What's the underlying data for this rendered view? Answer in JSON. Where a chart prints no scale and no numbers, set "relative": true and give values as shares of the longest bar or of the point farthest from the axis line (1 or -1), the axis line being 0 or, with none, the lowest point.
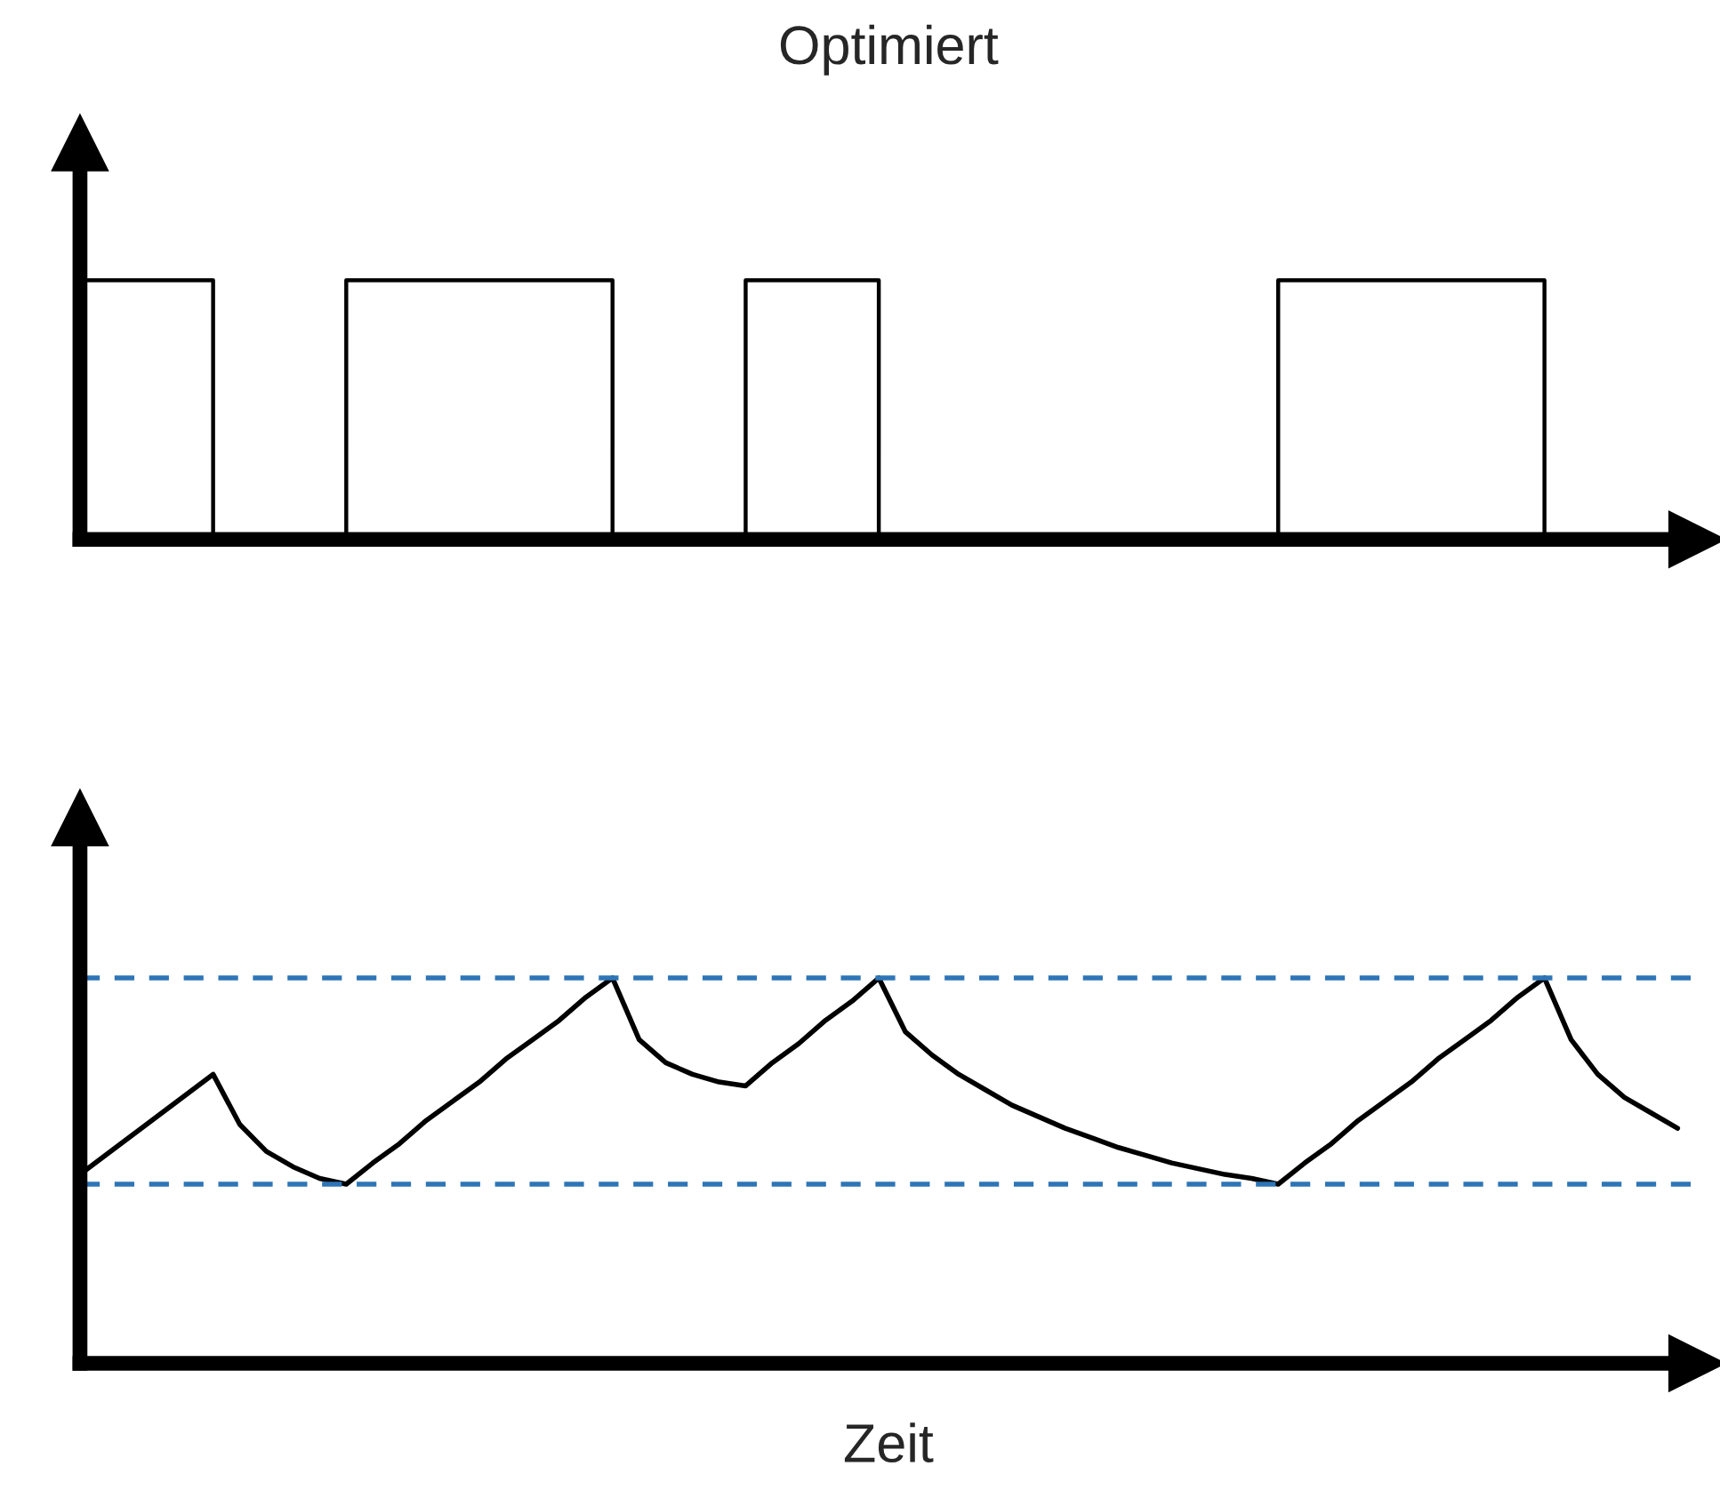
{
  "chart_data": [
    {
      "type": "step",
      "title": "Optimiert",
      "relative": true,
      "tick_labels": false,
      "categories": [
        null,
        null,
        null,
        null,
        null,
        null,
        null,
        null,
        null,
        null,
        null,
        null,
        null
      ],
      "series": [
        {
          "color": "#000000",
          "values": [
            1,
            0,
            1,
            1,
            0,
            1,
            0,
            0,
            0,
            1,
            1,
            0,
            0
          ]
        }
      ]
    },
    {
      "type": "line",
      "xlabel": "Zeit",
      "relative": true,
      "tick_labels": false,
      "categories": [
        null,
        null,
        null,
        null,
        null,
        null,
        null,
        null,
        null,
        null,
        null,
        null,
        null,
        null,
        null,
        null,
        null,
        null,
        null,
        null,
        null,
        null,
        null,
        null,
        null,
        null,
        null,
        null,
        null,
        null,
        null,
        null,
        null,
        null,
        null,
        null,
        null,
        null,
        null,
        null,
        null,
        null,
        null,
        null,
        null,
        null,
        null,
        null,
        null,
        null,
        null,
        null,
        null,
        null,
        null,
        null,
        null,
        null,
        null,
        null,
        null
      ],
      "series": [
        {
          "color": "#000000",
          "values": [
            0.49,
            0.542,
            0.594,
            0.646,
            0.698,
            0.75,
            0.62,
            0.55,
            0.51,
            0.48,
            0.465,
            0.52,
            0.57,
            0.63,
            0.68,
            0.73,
            0.79,
            0.84,
            0.89,
            0.95,
            1.0,
            0.84,
            0.78,
            0.75,
            0.73,
            0.72,
            0.78,
            0.83,
            0.89,
            0.94,
            1.0,
            0.86,
            0.8,
            0.75,
            0.71,
            0.67,
            0.64,
            0.61,
            0.585,
            0.56,
            0.54,
            0.52,
            0.505,
            0.49,
            0.48,
            0.465,
            0.52,
            0.57,
            0.63,
            0.68,
            0.73,
            0.79,
            0.84,
            0.89,
            0.95,
            1.0,
            0.84,
            0.75,
            0.69,
            0.65,
            0.61
          ]
        }
      ],
      "ref_lines": [
        {
          "axis": "y",
          "value": 1.0,
          "color": "#2e75b6",
          "line_style": "dashed"
        },
        {
          "axis": "y",
          "value": 0.465,
          "color": "#2e75b6",
          "line_style": "dashed"
        }
      ]
    }
  ]
}
